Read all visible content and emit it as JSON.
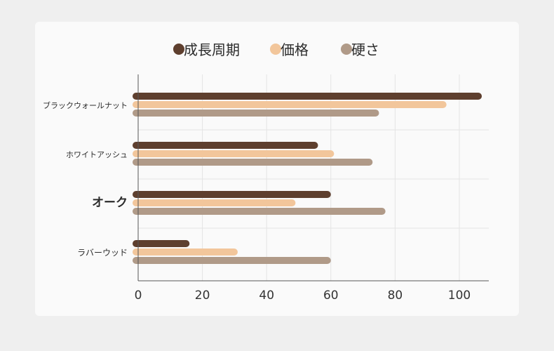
{
  "chart_data": {
    "type": "bar",
    "orientation": "horizontal",
    "categories": [
      "ブラックウォールナット",
      "ホワイトアッシュ",
      "オーク",
      "ラバーウッド"
    ],
    "series": [
      {
        "name": "成長周期",
        "values": [
          107,
          56,
          60,
          16
        ],
        "color": "#5e3f2e"
      },
      {
        "name": "価格",
        "values": [
          96,
          61,
          49,
          31
        ],
        "color": "#f2c69b"
      },
      {
        "name": "硬さ",
        "values": [
          75,
          73,
          77,
          60
        ],
        "color": "#b09a88"
      }
    ],
    "xlim": [
      0,
      110
    ],
    "xticks": [
      0,
      20,
      40,
      60,
      80,
      100
    ],
    "grid": true,
    "legend_position": "top"
  }
}
